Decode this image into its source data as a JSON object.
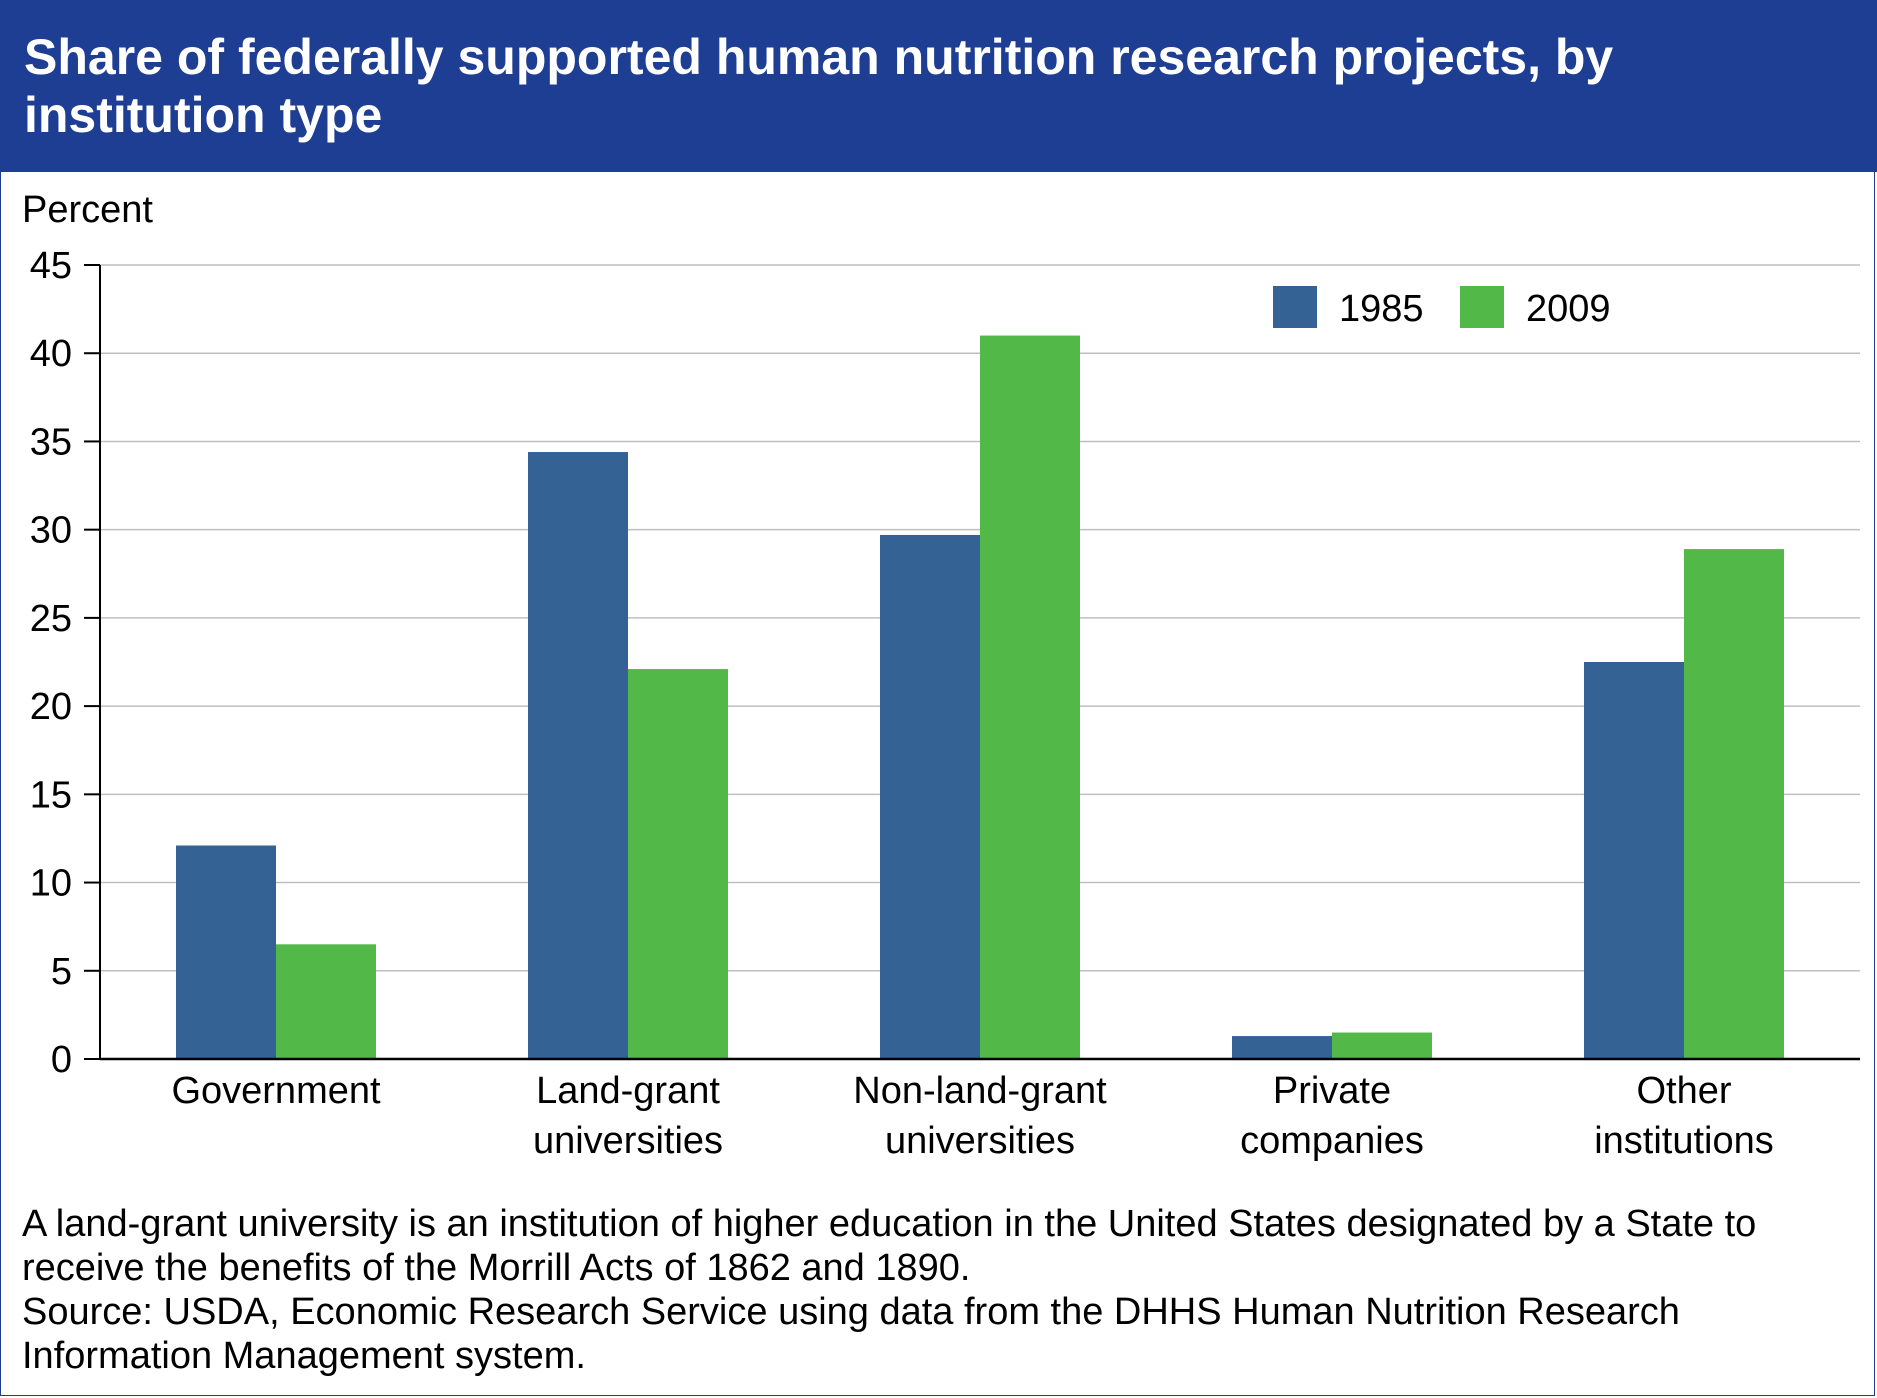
{
  "header": {
    "title": "Share of federally supported human nutrition research projects, by institution type"
  },
  "colors": {
    "title_bar": "#1e3e93",
    "series_1985": "#356295",
    "series_2009": "#52b848",
    "grid": "#bfbfbf"
  },
  "chart_data": {
    "type": "bar",
    "title": "Share of federally supported human nutrition research projects, by institution type",
    "ylabel": "Percent",
    "xlabel": "",
    "ylim": [
      0,
      45
    ],
    "yticks": [
      0,
      5,
      10,
      15,
      20,
      25,
      30,
      35,
      40,
      45
    ],
    "grid": true,
    "legend_position": "top-right",
    "categories": [
      [
        "Government"
      ],
      [
        "Land-grant",
        "universities"
      ],
      [
        "Non-land-grant",
        "universities"
      ],
      [
        "Private",
        "companies"
      ],
      [
        "Other",
        "institutions"
      ]
    ],
    "series": [
      {
        "name": "1985",
        "color": "#356295",
        "values": [
          12.1,
          34.4,
          29.7,
          1.3,
          22.5
        ]
      },
      {
        "name": "2009",
        "color": "#52b848",
        "values": [
          6.5,
          22.1,
          41.0,
          1.5,
          28.9
        ]
      }
    ]
  },
  "footer": {
    "note": "A land-grant university is an institution of higher education in the United States designated by a State to receive the benefits of the Morrill Acts of 1862 and 1890.",
    "source": "Source: USDA, Economic Research Service using data from the DHHS Human Nutrition Research Information Management system."
  }
}
